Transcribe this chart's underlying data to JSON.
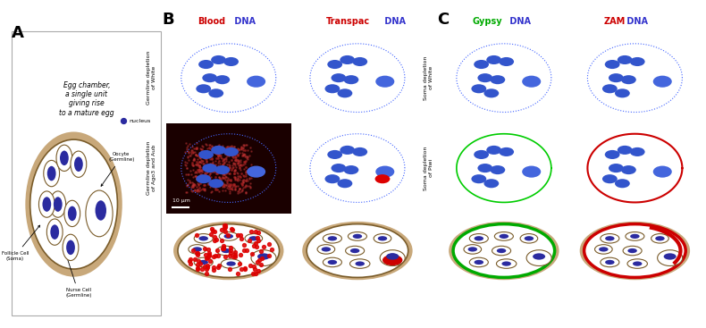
{
  "panel_A": {
    "label": "A",
    "box_text": "Egg chamber,\na single unit\ngiving rise\nto a mature egg",
    "nucleus_label": "nucleus",
    "annotations": [
      "Follicle Cell\n(Soma)",
      "Oocyte\n(Germline)",
      "Nurse Cell\n(Germline)"
    ],
    "egg_color": "#c8a87a",
    "nucleus_color": "#2b2ba0",
    "bg_color": "#ffffff"
  },
  "panel_B": {
    "label": "B",
    "col_titles": [
      [
        "Blood",
        " DNA"
      ],
      [
        "Transpac",
        " DNA"
      ]
    ],
    "col_title_colors": [
      [
        "#cc0000",
        "#3333cc"
      ],
      [
        "#cc0000",
        "#3333cc"
      ]
    ],
    "row_labels": [
      "Germline depletion\nof White",
      "Germline depletion\nof Ago3 and Aub"
    ],
    "scale_bar": "10 μm"
  },
  "panel_C": {
    "label": "C",
    "col_titles": [
      [
        "Gypsy",
        " DNA"
      ],
      [
        "ZAM",
        " DNA"
      ]
    ],
    "col_title_colors": [
      [
        "#00aa00",
        "#3333cc"
      ],
      [
        "#cc0000",
        "#3333cc"
      ]
    ],
    "row_labels": [
      "Soma depletion\nof White",
      "Soma depletion\nof Piwi"
    ]
  },
  "figure_bg": "#ffffff",
  "border_color": "#888888"
}
